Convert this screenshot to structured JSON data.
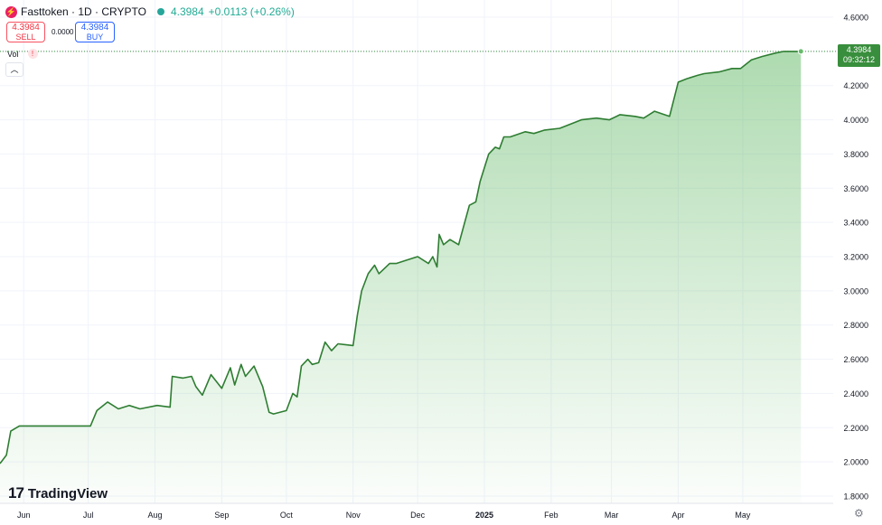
{
  "header": {
    "symbol": "Fasttoken · 1D · CRYPTO",
    "last_price": "4.3984",
    "change": "+0.0113 (+0.26%)"
  },
  "trade": {
    "sell_price": "4.3984",
    "sell_label": "SELL",
    "spread": "0.0000",
    "buy_price": "4.3984",
    "buy_label": "BUY"
  },
  "volume_label": "Vol",
  "brand": "TradingView",
  "price_tag": {
    "value": "4.3984",
    "countdown": "09:32:12"
  },
  "colors": {
    "line": "#2e7d32",
    "fill": "#4caf50",
    "grid": "#f0f3fa",
    "axis_text": "#131722"
  },
  "chart_data": {
    "type": "area",
    "y_ticks": [
      "4.6000",
      "4.4000",
      "4.2000",
      "4.0000",
      "3.8000",
      "3.6000",
      "3.4000",
      "3.2000",
      "3.0000",
      "2.8000",
      "2.6000",
      "2.4000",
      "2.2000",
      "2.0000",
      "1.8000"
    ],
    "ylim": [
      1.8,
      4.6
    ],
    "x_ticks": [
      "Jun",
      "Jul",
      "Aug",
      "Sep",
      "Oct",
      "Nov",
      "Dec",
      "2025",
      "Feb",
      "Mar",
      "Apr",
      "May"
    ],
    "x_tick_dates": [
      "2024-06-01",
      "2024-07-01",
      "2024-08-01",
      "2024-09-01",
      "2024-10-01",
      "2024-11-01",
      "2024-12-01",
      "2025-01-01",
      "2025-02-01",
      "2025-03-01",
      "2025-04-01",
      "2025-05-01"
    ],
    "xlim": [
      "2024-05-21",
      "2025-06-12"
    ],
    "x": [
      "2024-05-21",
      "2024-05-24",
      "2024-05-26",
      "2024-05-30",
      "2024-06-15",
      "2024-07-02",
      "2024-07-05",
      "2024-07-10",
      "2024-07-15",
      "2024-07-20",
      "2024-07-25",
      "2024-08-02",
      "2024-08-08",
      "2024-08-09",
      "2024-08-14",
      "2024-08-18",
      "2024-08-20",
      "2024-08-23",
      "2024-08-27",
      "2024-09-01",
      "2024-09-05",
      "2024-09-07",
      "2024-09-10",
      "2024-09-12",
      "2024-09-16",
      "2024-09-20",
      "2024-09-23",
      "2024-09-25",
      "2024-10-01",
      "2024-10-04",
      "2024-10-06",
      "2024-10-08",
      "2024-10-11",
      "2024-10-13",
      "2024-10-16",
      "2024-10-19",
      "2024-10-22",
      "2024-10-25",
      "2024-11-01",
      "2024-11-03",
      "2024-11-05",
      "2024-11-08",
      "2024-11-11",
      "2024-11-13",
      "2024-11-18",
      "2024-11-21",
      "2024-11-26",
      "2024-12-01",
      "2024-12-06",
      "2024-12-08",
      "2024-12-10",
      "2024-12-11",
      "2024-12-13",
      "2024-12-16",
      "2024-12-20",
      "2024-12-25",
      "2024-12-28",
      "2024-12-30",
      "2025-01-03",
      "2025-01-06",
      "2025-01-08",
      "2025-01-10",
      "2025-01-13",
      "2025-01-20",
      "2025-01-24",
      "2025-01-29",
      "2025-02-05",
      "2025-02-15",
      "2025-02-22",
      "2025-02-28",
      "2025-03-05",
      "2025-03-12",
      "2025-03-16",
      "2025-03-21",
      "2025-03-28",
      "2025-04-01",
      "2025-04-05",
      "2025-04-10",
      "2025-04-13",
      "2025-04-20",
      "2025-04-26",
      "2025-04-30",
      "2025-05-05",
      "2025-05-10",
      "2025-05-16",
      "2025-05-20",
      "2025-05-25",
      "2025-05-28"
    ],
    "y": [
      1.99,
      2.04,
      2.18,
      2.21,
      2.21,
      2.21,
      2.3,
      2.35,
      2.31,
      2.33,
      2.31,
      2.33,
      2.32,
      2.5,
      2.49,
      2.5,
      2.44,
      2.39,
      2.51,
      2.43,
      2.55,
      2.45,
      2.57,
      2.5,
      2.56,
      2.44,
      2.29,
      2.28,
      2.3,
      2.4,
      2.38,
      2.56,
      2.6,
      2.57,
      2.58,
      2.7,
      2.65,
      2.69,
      2.68,
      2.86,
      3.0,
      3.1,
      3.15,
      3.1,
      3.16,
      3.16,
      3.18,
      3.2,
      3.16,
      3.2,
      3.14,
      3.33,
      3.27,
      3.3,
      3.27,
      3.5,
      3.52,
      3.64,
      3.8,
      3.84,
      3.83,
      3.9,
      3.9,
      3.93,
      3.92,
      3.94,
      3.95,
      4.0,
      4.01,
      4.0,
      4.03,
      4.02,
      4.01,
      4.05,
      4.02,
      4.22,
      4.24,
      4.26,
      4.27,
      4.28,
      4.3,
      4.3,
      4.35,
      4.37,
      4.39,
      4.4,
      4.4,
      4.4
    ]
  }
}
